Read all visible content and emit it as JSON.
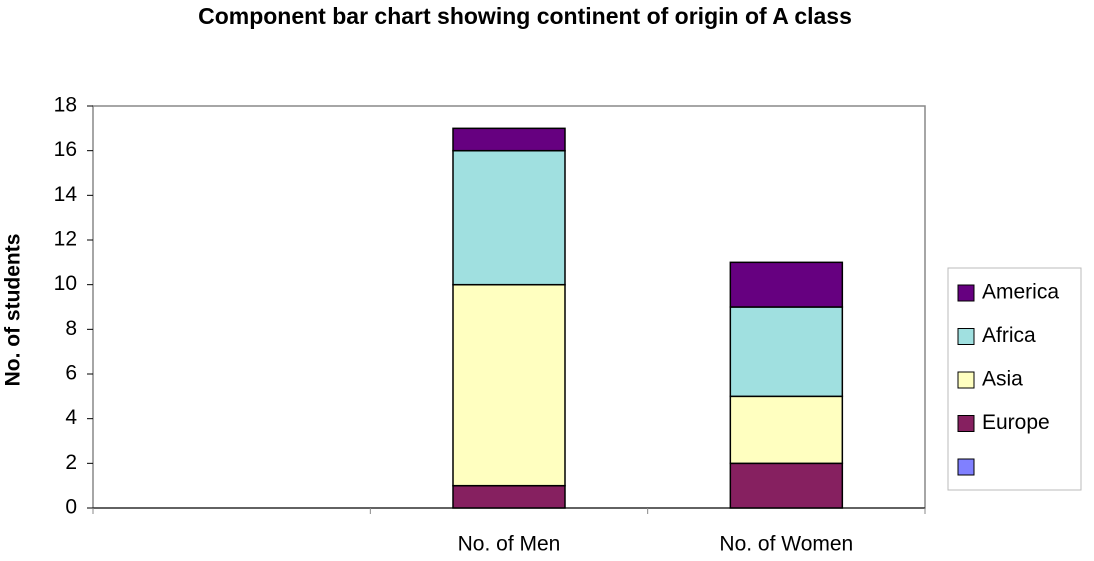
{
  "chart_data": {
    "type": "stacked-bar",
    "title": "Component bar chart showing continent of origin of A class",
    "y_label": "No. of students",
    "categories": [
      null,
      "No. of Men",
      "No. of Women"
    ],
    "series": [
      {
        "name": null,
        "color": "#8080ff",
        "values": [
          null,
          null,
          null
        ]
      },
      {
        "name": "Europe",
        "color": "#862060",
        "values": [
          null,
          1,
          2
        ]
      },
      {
        "name": "Asia",
        "color": "#ffffc0",
        "values": [
          null,
          9,
          3
        ]
      },
      {
        "name": "Africa",
        "color": "#a0e0e0",
        "values": [
          null,
          6,
          4
        ]
      },
      {
        "name": "America",
        "color": "#660080",
        "values": [
          null,
          1,
          2
        ]
      }
    ],
    "ylim": [
      0,
      18
    ],
    "yticks": [
      0,
      2,
      4,
      6,
      8,
      10,
      12,
      14,
      16,
      18
    ],
    "grid": false,
    "legend": "right"
  }
}
